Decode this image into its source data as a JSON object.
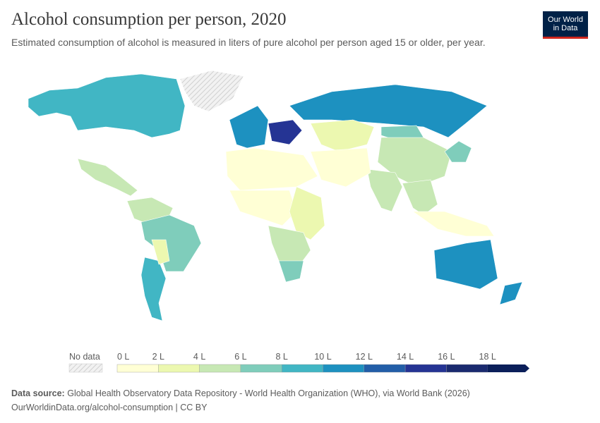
{
  "header": {
    "title": "Alcohol consumption per person, 2020",
    "subtitle": "Estimated consumption of alcohol is measured in liters of pure alcohol per person aged 15 or older, per year.",
    "logo_line1": "Our World",
    "logo_line2": "in Data"
  },
  "chart_data": {
    "type": "choropleth-map",
    "title": "Alcohol consumption per person, 2020",
    "unit": "L",
    "legend": {
      "no_data_label": "No data",
      "tick_labels": [
        "0 L",
        "2 L",
        "4 L",
        "6 L",
        "8 L",
        "10 L",
        "12 L",
        "14 L",
        "16 L",
        "18 L"
      ],
      "bins": [
        [
          0,
          2
        ],
        [
          2,
          4
        ],
        [
          4,
          6
        ],
        [
          6,
          8
        ],
        [
          8,
          10
        ],
        [
          10,
          12
        ],
        [
          12,
          14
        ],
        [
          14,
          16
        ],
        [
          16,
          18
        ],
        [
          18,
          null
        ]
      ],
      "colors": [
        "#ffffd5",
        "#ecf8b0",
        "#c7e8b4",
        "#7fcdbb",
        "#41b6c4",
        "#1d91c0",
        "#225ea8",
        "#253494",
        "#1a2a6f",
        "#0b1f5a"
      ],
      "no_data_color": "#e8e8e8"
    },
    "regions": [
      {
        "name": "North America (Canada, USA)",
        "bin": 4
      },
      {
        "name": "Greenland",
        "bin": null
      },
      {
        "name": "Mexico & Central America",
        "bin": 2
      },
      {
        "name": "Northern South America",
        "bin": 2
      },
      {
        "name": "Brazil",
        "bin": 3
      },
      {
        "name": "Argentina & Chile",
        "bin": 4
      },
      {
        "name": "Bolivia / Paraguay",
        "bin": 1
      },
      {
        "name": "Western & Central Europe",
        "bin": 5
      },
      {
        "name": "Eastern Europe",
        "bin": 7
      },
      {
        "name": "Russia",
        "bin": 5
      },
      {
        "name": "Kazakhstan & Central Asia",
        "bin": 1
      },
      {
        "name": "Mongolia",
        "bin": 3
      },
      {
        "name": "China",
        "bin": 2
      },
      {
        "name": "India",
        "bin": 2
      },
      {
        "name": "Middle East",
        "bin": 0
      },
      {
        "name": "North Africa",
        "bin": 0
      },
      {
        "name": "Central Africa",
        "bin": 0
      },
      {
        "name": "East Africa",
        "bin": 1
      },
      {
        "name": "Southern Africa",
        "bin": 2
      },
      {
        "name": "South Africa",
        "bin": 3
      },
      {
        "name": "Southeast Asia",
        "bin": 2
      },
      {
        "name": "Indonesia",
        "bin": 0
      },
      {
        "name": "Japan & Korea",
        "bin": 3
      },
      {
        "name": "Australia",
        "bin": 5
      },
      {
        "name": "New Zealand",
        "bin": 5
      }
    ]
  },
  "footer": {
    "source_label": "Data source:",
    "source_text": "Global Health Observatory Data Repository - World Health Organization (WHO), via World Bank (2026)",
    "url_line": "OurWorldinData.org/alcohol-consumption | CC BY"
  }
}
